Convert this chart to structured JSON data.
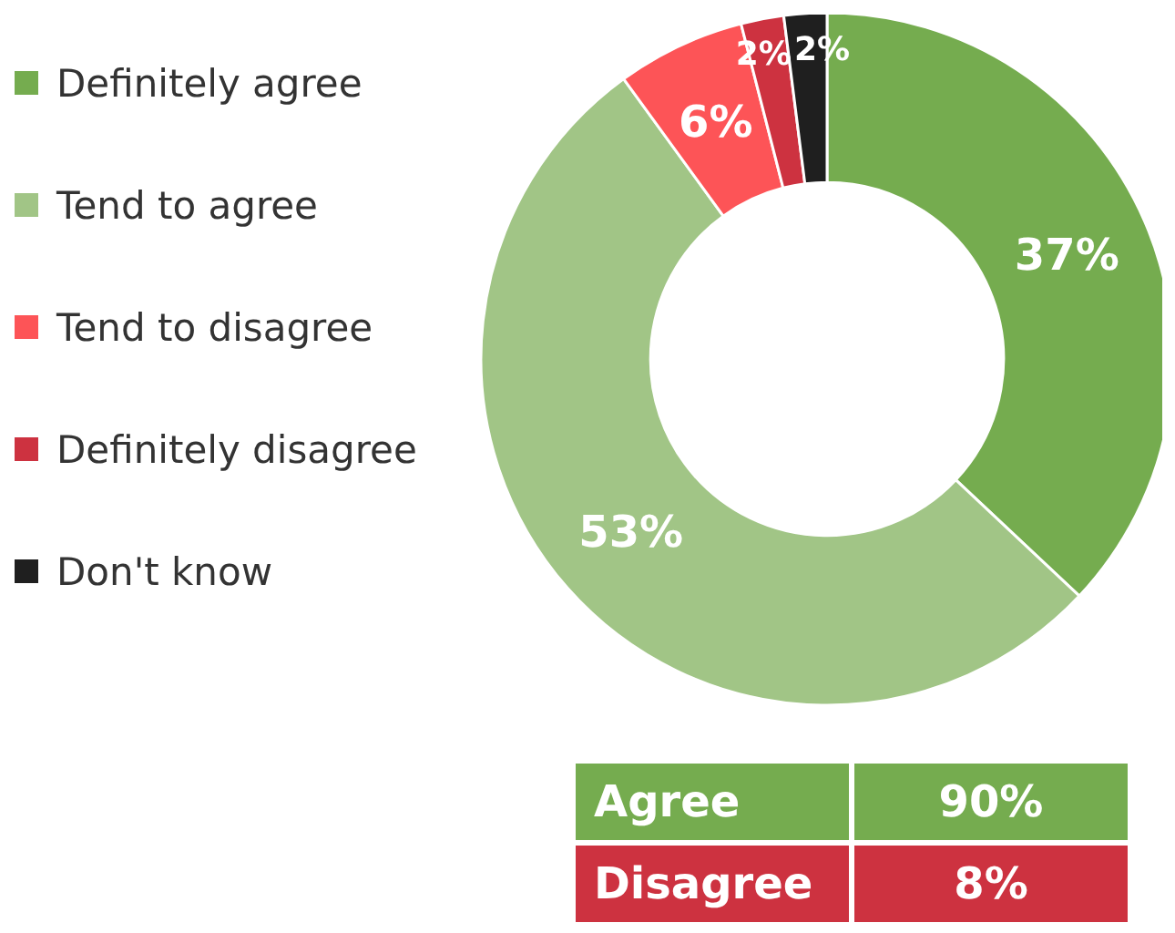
{
  "chart_data": {
    "type": "donut",
    "categories": [
      "Definitely agree",
      "Tend to agree",
      "Tend to disagree",
      "Definitely disagree",
      "Don't know"
    ],
    "values": [
      37,
      53,
      6,
      2,
      2
    ],
    "colors": [
      "#75ac4f",
      "#a1c586",
      "#fd5457",
      "#cd3240",
      "#1f1f1f"
    ],
    "value_labels": [
      "37%",
      "53%",
      "6%",
      "2%",
      "2%"
    ],
    "legend": "left",
    "annotations": [
      "Agree",
      "90%",
      "Disagree",
      "8%"
    ]
  }
}
